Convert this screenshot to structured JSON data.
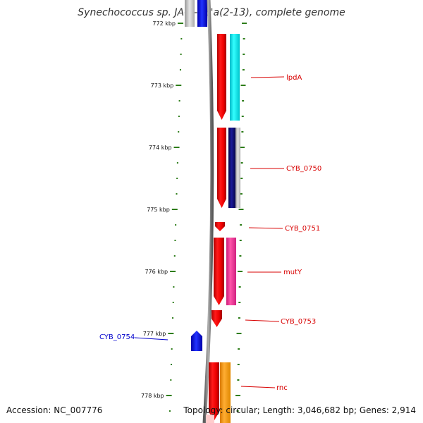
{
  "title": "Synechococcus sp. JA-2-3B'a(2-13), complete genome",
  "accession": "Accession: NC_007776",
  "summary": "Topology: circular; Length: 3,046,682 bp; Genes: 2,914",
  "scale": [
    {
      "kbp": 772,
      "label": "772 kbp"
    },
    {
      "kbp": 773,
      "label": "773 kbp"
    },
    {
      "kbp": 774,
      "label": "774 kbp"
    },
    {
      "kbp": 775,
      "label": "775 kbp"
    },
    {
      "kbp": 776,
      "label": "776 kbp"
    },
    {
      "kbp": 777,
      "label": "777 kbp"
    },
    {
      "kbp": 778,
      "label": "778 kbp"
    }
  ],
  "genes": [
    {
      "label": "lpdA",
      "color": "#d80000"
    },
    {
      "label": "CYB_0750",
      "color": "#d80000"
    },
    {
      "label": "CYB_0751",
      "color": "#d80000"
    },
    {
      "label": "mutY",
      "color": "#d80000"
    },
    {
      "label": "CYB_0753",
      "color": "#d80000"
    },
    {
      "label": "CYB_0754",
      "color": "#0000cc"
    },
    {
      "label": "rnc",
      "color": "#d80000"
    }
  ],
  "colors": {
    "forward_cds": "#ff0000",
    "reverse_cds": "#0000ff",
    "backbone": "#808080",
    "scale_ticks": "#2e7d1a",
    "lpdA_cog": "#00e5e5",
    "CYB_0750_cog": "#0a0a7a",
    "mutY_cog": "#ff3399",
    "rnc_cog": "#ff9900"
  }
}
